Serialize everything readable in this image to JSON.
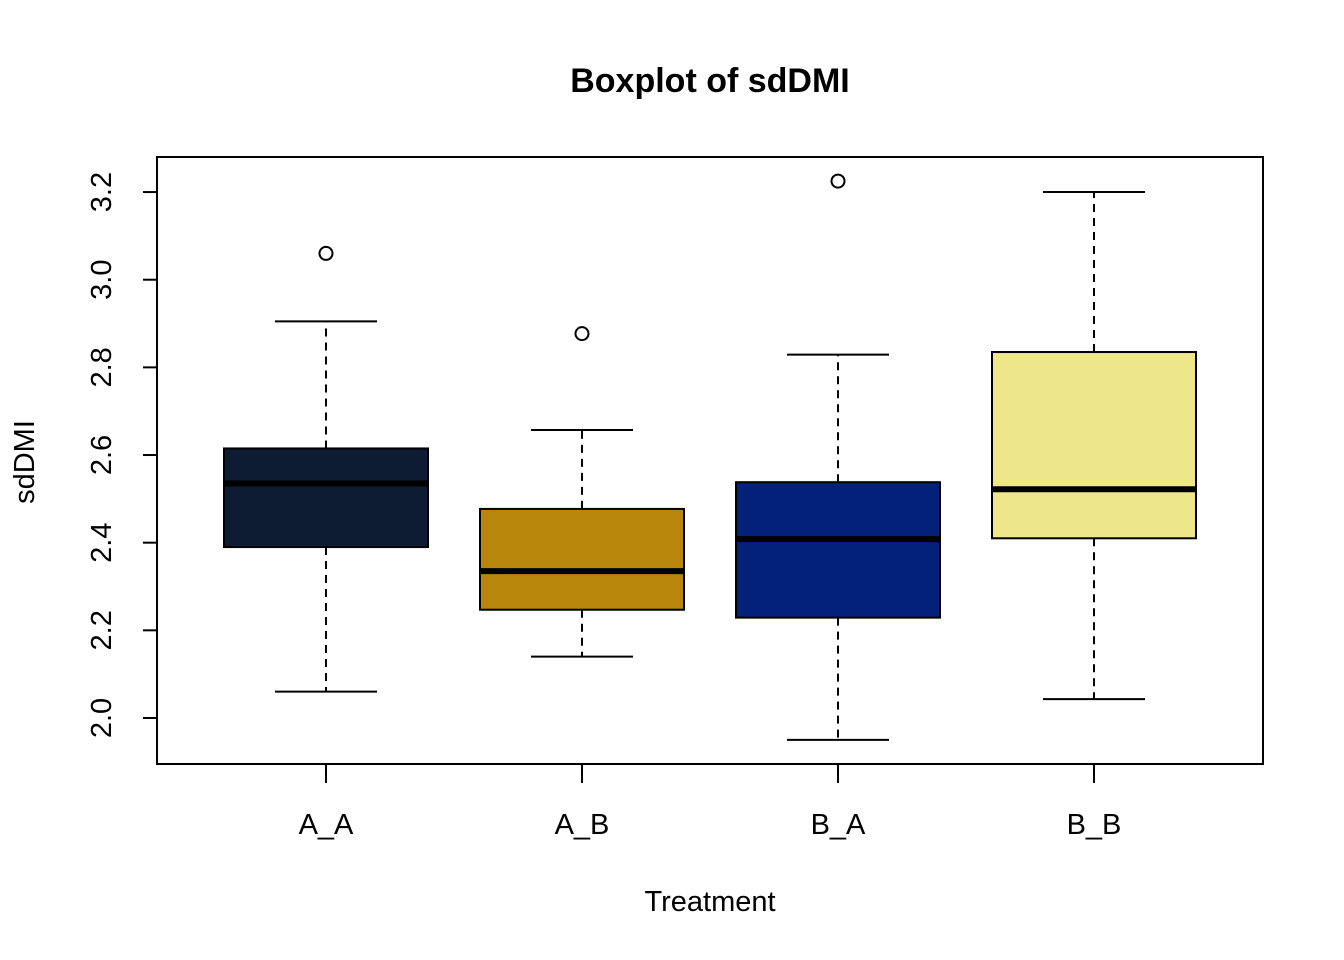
{
  "chart_data": {
    "type": "boxplot",
    "title": "Boxplot of sdDMI",
    "xlabel": "Treatment",
    "ylabel": "sdDMI",
    "ylim": [
      1.895,
      3.28
    ],
    "yticks": [
      "2.0",
      "2.2",
      "2.4",
      "2.6",
      "2.8",
      "3.0",
      "3.2"
    ],
    "categories": [
      "A_A",
      "A_B",
      "B_A",
      "B_B"
    ],
    "grid": false,
    "legend": "none",
    "boxes": [
      {
        "category": "A_A",
        "color": "#0D1B33",
        "whisker_low": 2.06,
        "q1": 2.39,
        "median": 2.535,
        "q3": 2.615,
        "whisker_high": 2.905,
        "outliers": [
          3.06
        ]
      },
      {
        "category": "A_B",
        "color": "#B8860B",
        "whisker_low": 2.14,
        "q1": 2.247,
        "median": 2.335,
        "q3": 2.477,
        "whisker_high": 2.657,
        "outliers": [
          2.877
        ]
      },
      {
        "category": "B_A",
        "color": "#03217A",
        "whisker_low": 1.95,
        "q1": 2.229,
        "median": 2.408,
        "q3": 2.538,
        "whisker_high": 2.829,
        "outliers": [
          3.225
        ]
      },
      {
        "category": "B_B",
        "color": "#EEE78A",
        "whisker_low": 2.043,
        "q1": 2.41,
        "median": 2.522,
        "q3": 2.835,
        "whisker_high": 3.2,
        "outliers": []
      }
    ]
  }
}
